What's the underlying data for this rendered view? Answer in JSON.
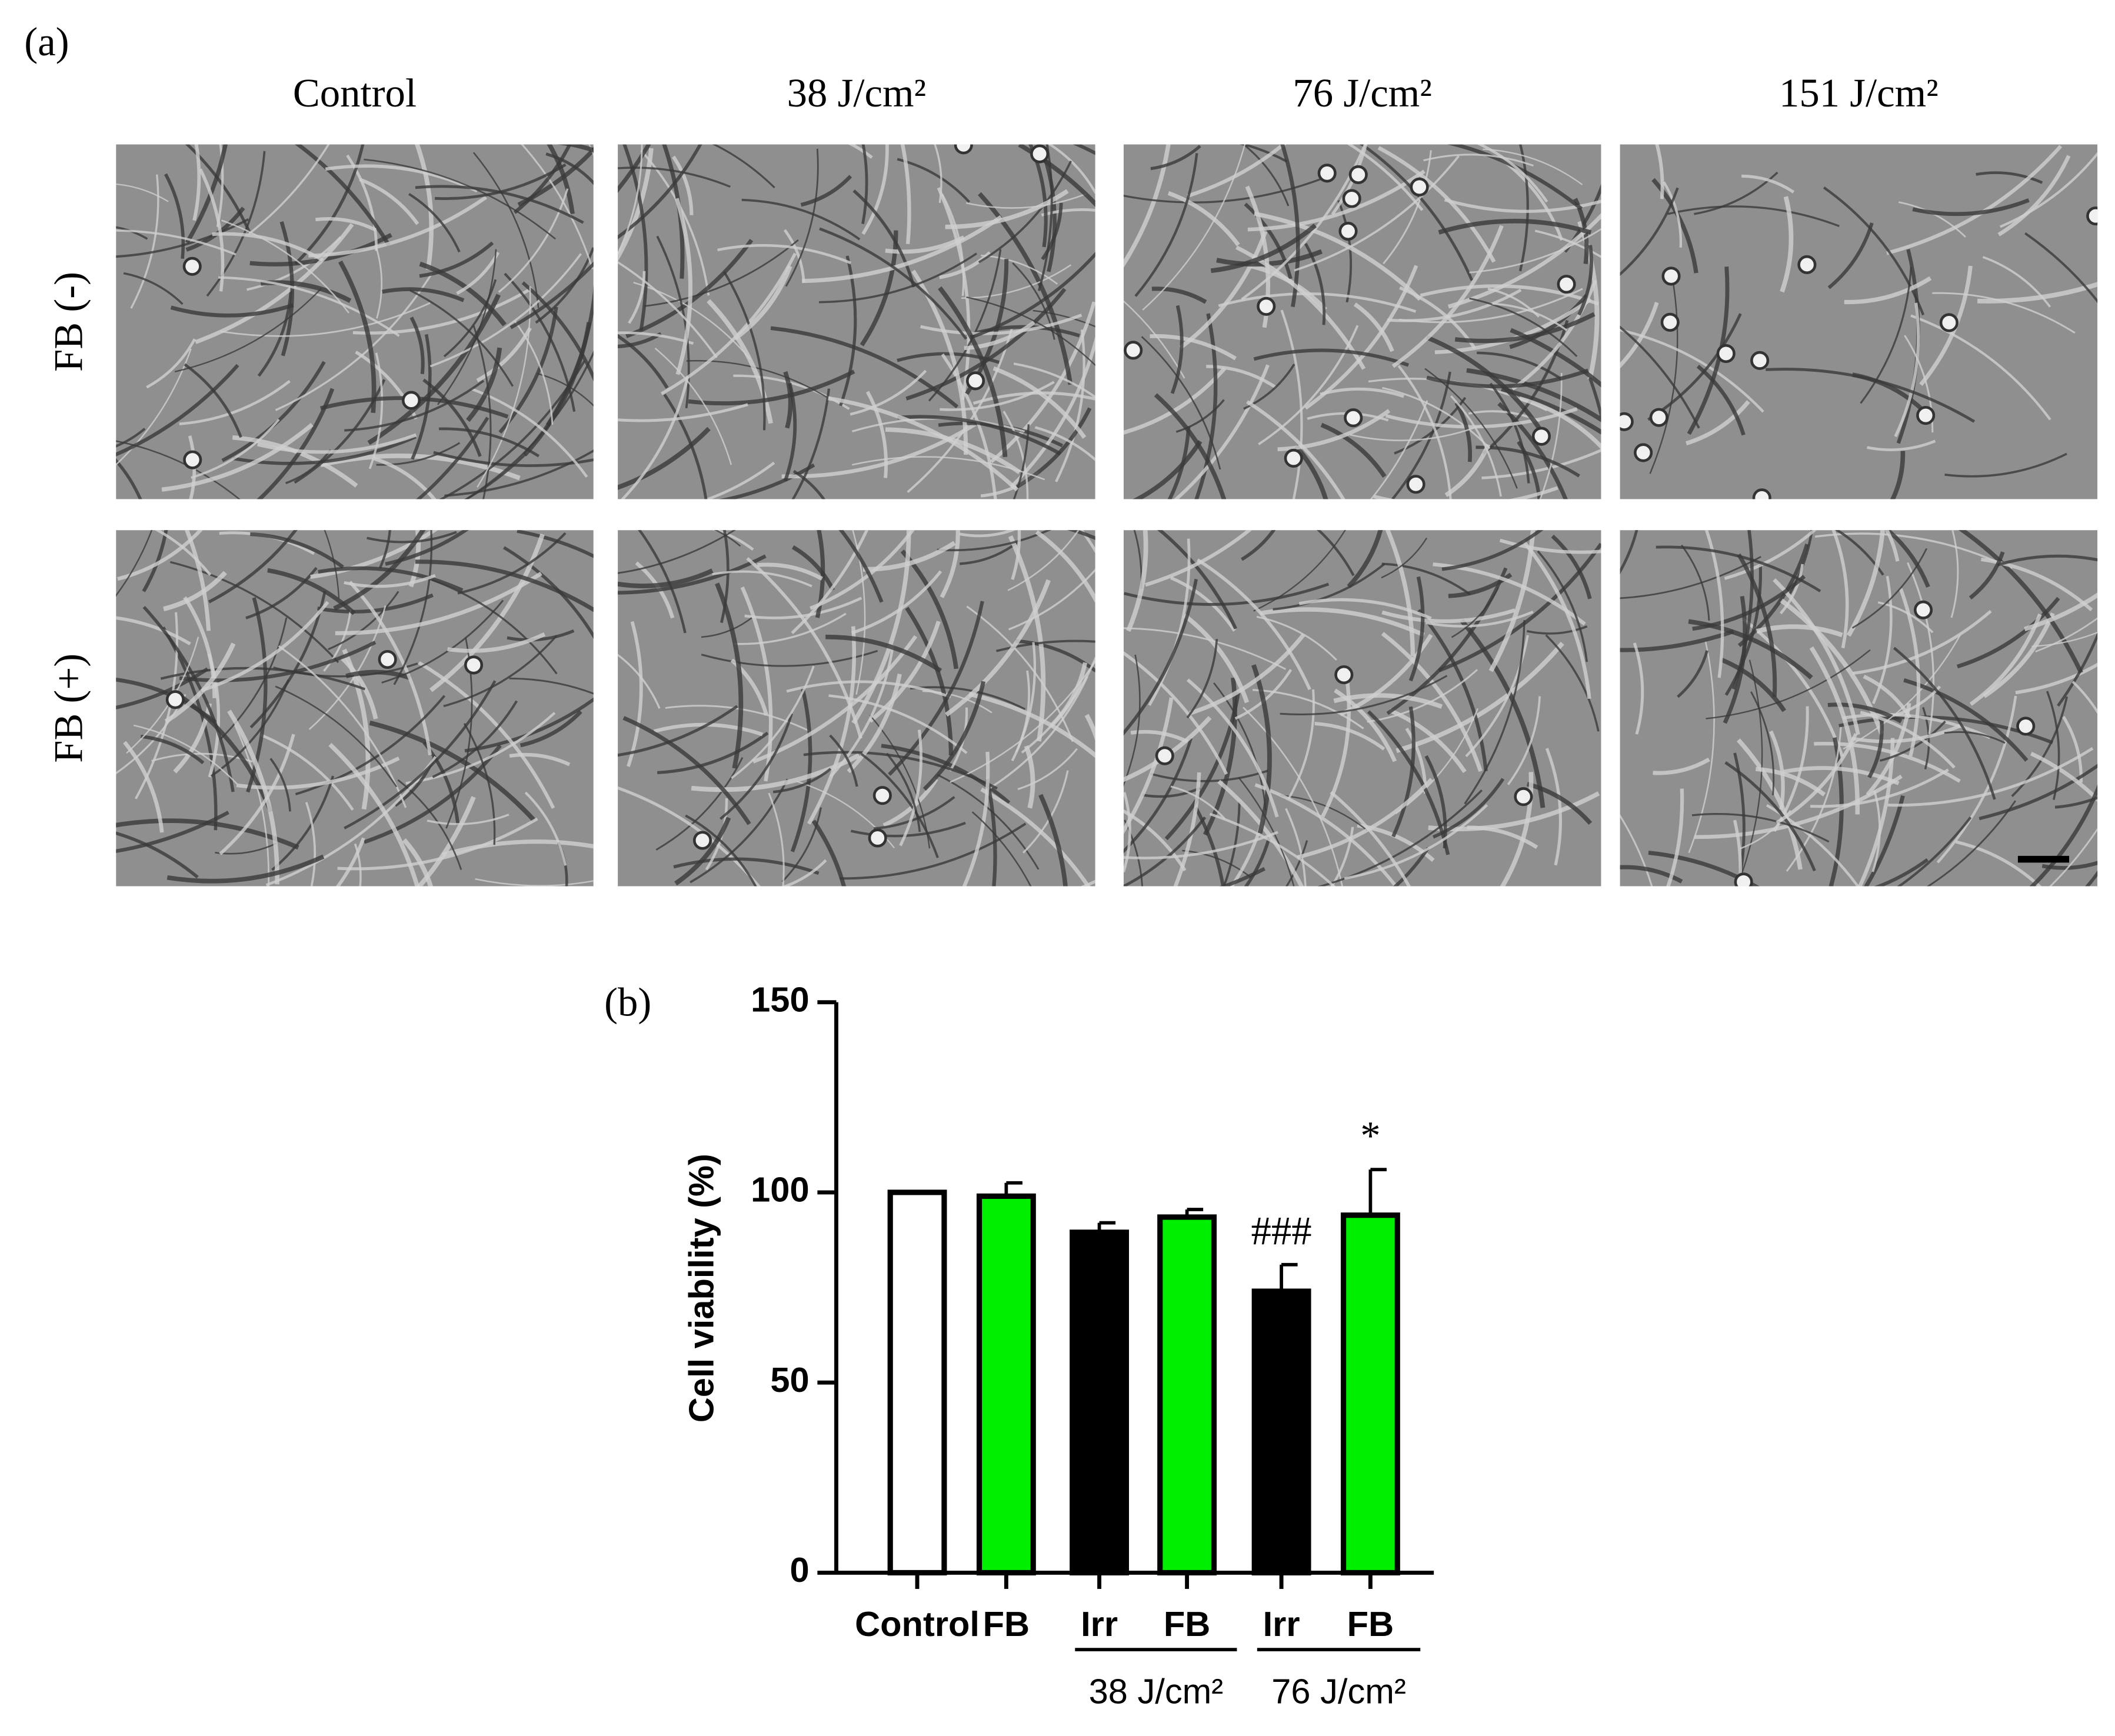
{
  "panel_a": {
    "label": "(a)",
    "columns": [
      "Control",
      "38 J/cm²",
      "76 J/cm²",
      "151 J/cm²"
    ],
    "rows": [
      "FB (-)",
      "FB (+)"
    ]
  },
  "chart_data": {
    "type": "bar",
    "panel_label": "(b)",
    "y_label": "Cell viability (%)",
    "categories": [
      "Control",
      "FB",
      "Irr",
      "FB",
      "Irr",
      "FB"
    ],
    "values": [
      100,
      99,
      89.5,
      93.5,
      74,
      94
    ],
    "errors": [
      0,
      3.5,
      2.5,
      2,
      7,
      12
    ],
    "colors": [
      "#ffffff",
      "#00ee00",
      "#000000",
      "#00ee00",
      "#000000",
      "#00ee00"
    ],
    "significance": [
      null,
      null,
      null,
      null,
      "###",
      "*"
    ],
    "groups": [
      {
        "label": "38 J/cm²",
        "span": [
          2,
          3
        ]
      },
      {
        "label": "76 J/cm²",
        "span": [
          4,
          5
        ]
      }
    ],
    "ylim": [
      0,
      150
    ],
    "yticks": [
      0,
      50,
      100,
      150
    ],
    "grid": false
  }
}
